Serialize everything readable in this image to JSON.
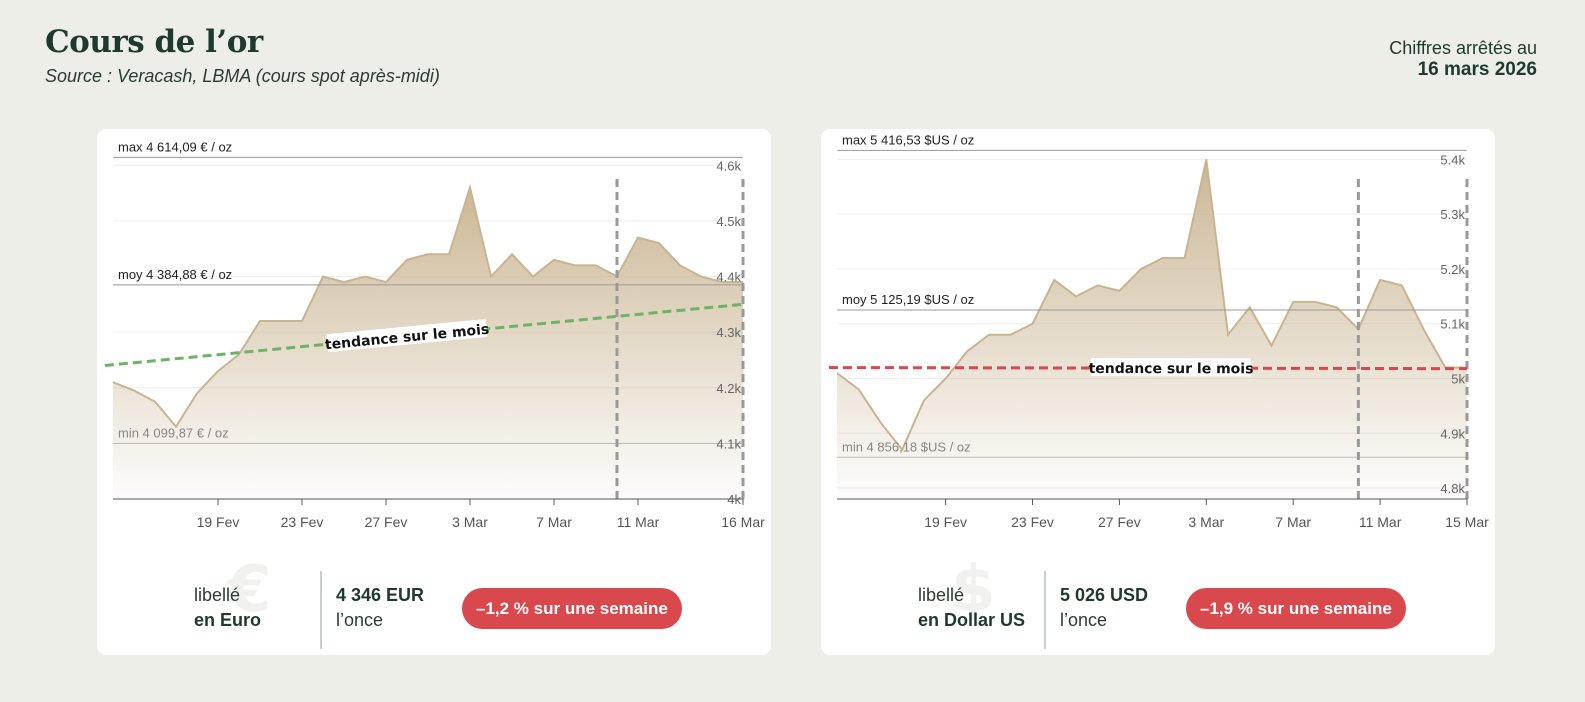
{
  "header": {
    "title": "Cours de l’or",
    "subtitle": "Source : Veracash, LBMA (cours spot après-midi)",
    "date_prefix": "Chiffres arrêtés au",
    "date_value": "16 mars 2026"
  },
  "cards": [
    {
      "footer": {
        "label_top": "libellé",
        "label_bottom": "en Euro",
        "symbol": "€",
        "price": "4 346 EUR",
        "price_unit": "l’once",
        "change": "–1,2 % sur une semaine",
        "change_color": "#d9484c"
      }
    },
    {
      "footer": {
        "label_top": "libellé",
        "label_bottom": "en Dollar US",
        "symbol": "$",
        "price": "5 026 USD",
        "price_unit": "l’once",
        "change": "–1,9 % sur une semaine",
        "change_color": "#d9484c"
      }
    }
  ],
  "chart_data": [
    {
      "type": "area",
      "currency": "EUR",
      "x": [
        "2026-02-14",
        "2026-02-15",
        "2026-02-16",
        "2026-02-17",
        "2026-02-18",
        "2026-02-19",
        "2026-02-20",
        "2026-02-21",
        "2026-02-22",
        "2026-02-23",
        "2026-02-24",
        "2026-02-25",
        "2026-02-26",
        "2026-02-27",
        "2026-02-28",
        "2026-03-01",
        "2026-03-02",
        "2026-03-03",
        "2026-03-04",
        "2026-03-05",
        "2026-03-06",
        "2026-03-07",
        "2026-03-08",
        "2026-03-09",
        "2026-03-10",
        "2026-03-11",
        "2026-03-12",
        "2026-03-13",
        "2026-03-14",
        "2026-03-15",
        "2026-03-16"
      ],
      "values": [
        4210,
        4195,
        4175,
        4130,
        4190,
        4230,
        4260,
        4320,
        4320,
        4320,
        4400,
        4390,
        4400,
        4390,
        4430,
        4440,
        4440,
        4560,
        4400,
        4440,
        4400,
        4430,
        4420,
        4420,
        4400,
        4470,
        4460,
        4420,
        4400,
        4390,
        4390
      ],
      "x_ticks": [
        "19 Fev",
        "23 Fev",
        "27 Fev",
        "3 Mar",
        "7 Mar",
        "11 Mar",
        "16 Mar"
      ],
      "y_ticks": [
        "4k",
        "4.1k",
        "4.2k",
        "4.3k",
        "4.4k",
        "4.5k",
        "4.6k"
      ],
      "ylim": [
        4000,
        4640
      ],
      "max_label": "max 4 614,09 € / oz",
      "max_value": 4614.09,
      "mean_label": "moy 4 384,88 € / oz",
      "mean_value": 4384.88,
      "min_label": "min 4 099,87 € / oz",
      "min_value": 4099.87,
      "trend_label": "tendance sur le mois",
      "trend_start": 4240,
      "trend_end": 4350,
      "trend_color": "#6db366",
      "week_marker": "2026-03-10",
      "area_color": "#c9b491",
      "line_color": "#c8b48f",
      "grid": true
    },
    {
      "type": "area",
      "currency": "USD",
      "x": [
        "2026-02-14",
        "2026-02-15",
        "2026-02-16",
        "2026-02-17",
        "2026-02-18",
        "2026-02-19",
        "2026-02-20",
        "2026-02-21",
        "2026-02-22",
        "2026-02-23",
        "2026-02-24",
        "2026-02-25",
        "2026-02-26",
        "2026-02-27",
        "2026-02-28",
        "2026-03-01",
        "2026-03-02",
        "2026-03-03",
        "2026-03-04",
        "2026-03-05",
        "2026-03-06",
        "2026-03-07",
        "2026-03-08",
        "2026-03-09",
        "2026-03-10",
        "2026-03-11",
        "2026-03-12",
        "2026-03-13",
        "2026-03-14",
        "2026-03-15"
      ],
      "values": [
        5010,
        4980,
        4920,
        4870,
        4960,
        5000,
        5050,
        5080,
        5080,
        5100,
        5180,
        5150,
        5170,
        5160,
        5200,
        5220,
        5220,
        5400,
        5080,
        5130,
        5060,
        5140,
        5140,
        5130,
        5090,
        5180,
        5170,
        5090,
        5020,
        5020
      ],
      "x_ticks": [
        "19 Fev",
        "23 Fev",
        "27 Fev",
        "3 Mar",
        "7 Mar",
        "11 Mar",
        "15 Mar"
      ],
      "y_ticks": [
        "4.8k",
        "4.9k",
        "5k",
        "5.1k",
        "5.2k",
        "5.3k",
        "5.4k"
      ],
      "ylim": [
        4780,
        5430
      ],
      "max_label": "max 5 416,53 $US / oz",
      "max_value": 5416.53,
      "mean_label": "moy 5 125,19 $US / oz",
      "mean_value": 5125.19,
      "min_label": "min 4 856,18 $US / oz",
      "min_value": 4856.18,
      "trend_label": "tendance sur le mois",
      "trend_start": 5020,
      "trend_end": 5018,
      "trend_color": "#d9484c",
      "week_marker": "2026-03-10",
      "area_color": "#c9b491",
      "line_color": "#c8b48f",
      "grid": true
    }
  ]
}
